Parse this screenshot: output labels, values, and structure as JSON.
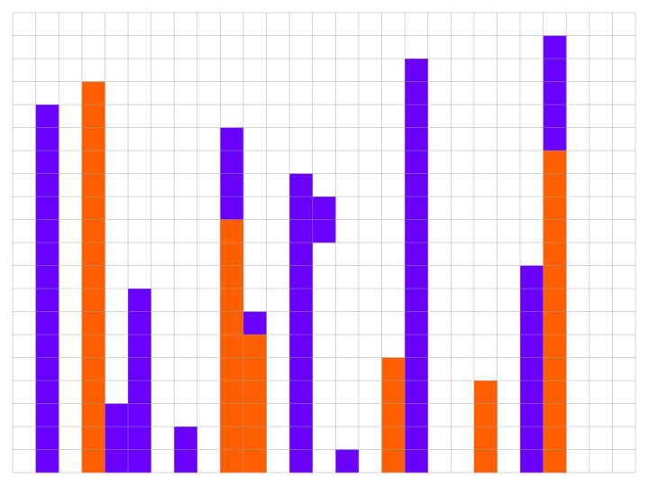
{
  "board": {
    "columns": 27,
    "rows": 20,
    "colors": {
      "purple": "#6a00ff",
      "orange": "#ff5f00"
    },
    "blocks": [
      {
        "column": 1,
        "top_row": 4,
        "bottom_row": 19,
        "color": "purple"
      },
      {
        "column": 3,
        "top_row": 3,
        "bottom_row": 19,
        "color": "orange"
      },
      {
        "column": 4,
        "top_row": 17,
        "bottom_row": 19,
        "color": "purple"
      },
      {
        "column": 5,
        "top_row": 12,
        "bottom_row": 19,
        "color": "purple"
      },
      {
        "column": 7,
        "top_row": 18,
        "bottom_row": 19,
        "color": "purple"
      },
      {
        "column": 9,
        "top_row": 5,
        "bottom_row": 8,
        "color": "purple"
      },
      {
        "column": 9,
        "top_row": 9,
        "bottom_row": 19,
        "color": "orange"
      },
      {
        "column": 10,
        "top_row": 13,
        "bottom_row": 13,
        "color": "purple"
      },
      {
        "column": 10,
        "top_row": 14,
        "bottom_row": 19,
        "color": "orange"
      },
      {
        "column": 12,
        "top_row": 7,
        "bottom_row": 19,
        "color": "purple"
      },
      {
        "column": 13,
        "top_row": 8,
        "bottom_row": 9,
        "color": "purple"
      },
      {
        "column": 14,
        "top_row": 19,
        "bottom_row": 19,
        "color": "purple"
      },
      {
        "column": 16,
        "top_row": 15,
        "bottom_row": 19,
        "color": "orange"
      },
      {
        "column": 17,
        "top_row": 2,
        "bottom_row": 19,
        "color": "purple"
      },
      {
        "column": 20,
        "top_row": 16,
        "bottom_row": 19,
        "color": "orange"
      },
      {
        "column": 22,
        "top_row": 11,
        "bottom_row": 19,
        "color": "purple"
      },
      {
        "column": 23,
        "top_row": 1,
        "bottom_row": 5,
        "color": "purple"
      },
      {
        "column": 23,
        "top_row": 6,
        "bottom_row": 19,
        "color": "orange"
      }
    ]
  }
}
